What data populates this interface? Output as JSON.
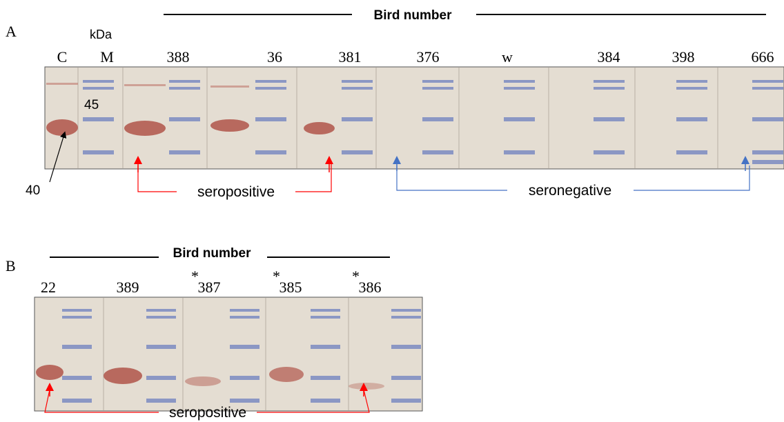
{
  "panel_a": {
    "label": "A",
    "header": "Bird number",
    "unit": "kDa",
    "lanes": [
      "C",
      "M",
      "388",
      "36",
      "381",
      "376",
      "w",
      "384",
      "398",
      "666"
    ],
    "markers": [
      "45",
      "40"
    ],
    "annotations": [
      "seropositive",
      "seronegative"
    ]
  },
  "panel_b": {
    "label": "B",
    "header": "Bird number",
    "star": "*",
    "lanes": [
      "22",
      "389",
      "387",
      "385",
      "386"
    ],
    "annotations": [
      "seropositive"
    ]
  }
}
